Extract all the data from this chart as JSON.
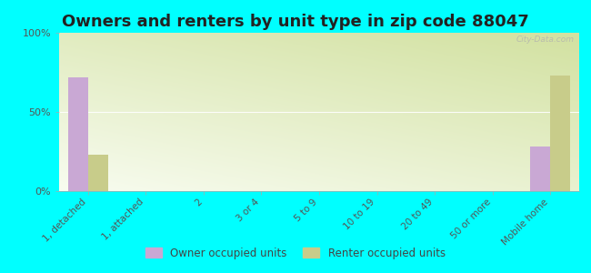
{
  "title": "Owners and renters by unit type in zip code 88047",
  "categories": [
    "1, detached",
    "1, attached",
    "2",
    "3 or 4",
    "5 to 9",
    "10 to 19",
    "20 to 49",
    "50 or more",
    "Mobile home"
  ],
  "owner_values": [
    72,
    0,
    0,
    0,
    0,
    0,
    0,
    0,
    28
  ],
  "renter_values": [
    23,
    0,
    0,
    0,
    0,
    0,
    0,
    0,
    73
  ],
  "owner_color": "#c9a8d4",
  "renter_color": "#c8cc8a",
  "ylim": [
    0,
    100
  ],
  "yticks": [
    0,
    50,
    100
  ],
  "ytick_labels": [
    "0%",
    "50%",
    "100%"
  ],
  "bg_outer": "#00ffff",
  "watermark": "City-Data.com",
  "bar_width": 0.35,
  "legend_owner": "Owner occupied units",
  "legend_renter": "Renter occupied units",
  "gradient_colors": [
    "#f8faf0",
    "#ddeaaa"
  ],
  "title_fontsize": 13,
  "tick_fontsize": 7.5
}
